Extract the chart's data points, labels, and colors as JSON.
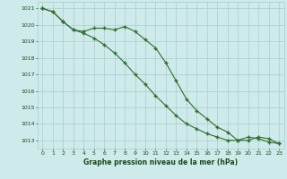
{
  "hours": [
    0,
    1,
    2,
    3,
    4,
    5,
    6,
    7,
    8,
    9,
    10,
    11,
    12,
    13,
    14,
    15,
    16,
    17,
    18,
    19,
    20,
    21,
    22,
    23
  ],
  "series1": [
    1021.0,
    1020.8,
    1020.2,
    1019.7,
    1019.6,
    1019.8,
    1019.8,
    1019.7,
    1019.9,
    1019.6,
    1019.1,
    1018.6,
    1017.7,
    1016.6,
    1015.5,
    1014.8,
    1014.3,
    1013.8,
    1013.5,
    1013.0,
    1013.0,
    1013.2,
    1013.1,
    1012.8
  ],
  "series2": [
    1021.0,
    1020.8,
    1020.2,
    1019.7,
    1019.5,
    1019.2,
    1018.8,
    1018.3,
    1017.7,
    1017.0,
    1016.4,
    1015.7,
    1015.1,
    1014.5,
    1014.0,
    1013.7,
    1013.4,
    1013.2,
    1013.0,
    1013.0,
    1013.2,
    1013.1,
    1012.9,
    1012.8
  ],
  "line_color": "#2d6e2d",
  "marker_color": "#2d6e2d",
  "bg_color": "#ceeaea",
  "grid_color": "#aacece",
  "text_color": "#1a4a1a",
  "xlabel": "Graphe pression niveau de la mer (hPa)",
  "ylim": [
    1012.5,
    1021.4
  ],
  "yticks": [
    1013,
    1014,
    1015,
    1016,
    1017,
    1018,
    1019,
    1020,
    1021
  ],
  "xlim": [
    -0.5,
    23.5
  ],
  "xticks": [
    0,
    1,
    2,
    3,
    4,
    5,
    6,
    7,
    8,
    9,
    10,
    11,
    12,
    13,
    14,
    15,
    16,
    17,
    18,
    19,
    20,
    21,
    22,
    23
  ]
}
